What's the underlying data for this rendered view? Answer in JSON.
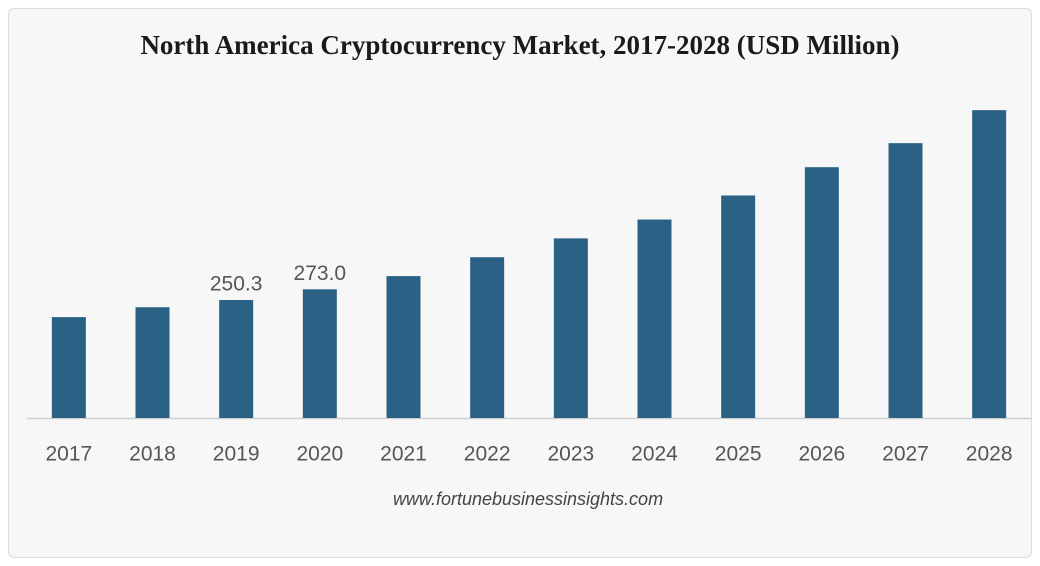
{
  "chart_data": {
    "type": "bar",
    "title": "North America Cryptocurrency Market, 2017-2028 (USD Million)",
    "categories": [
      "2017",
      "2018",
      "2019",
      "2020",
      "2021",
      "2022",
      "2023",
      "2024",
      "2025",
      "2026",
      "2027",
      "2028"
    ],
    "values": [
      214,
      235,
      250.3,
      273.0,
      301,
      341,
      381,
      421,
      472,
      532,
      583,
      653
    ],
    "value_labels": [
      null,
      null,
      "250.3",
      "273.0",
      null,
      null,
      null,
      null,
      null,
      null,
      null,
      null
    ],
    "color": "#2a6184",
    "ylim": [
      0,
      700
    ],
    "source": "www.fortunebusinessinsights.com"
  }
}
